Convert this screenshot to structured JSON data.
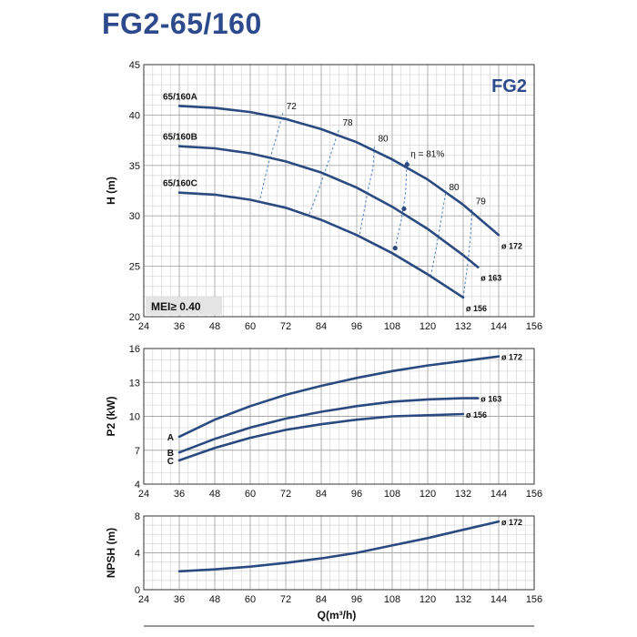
{
  "page": {
    "title": "FG2-65/160"
  },
  "chart_data": {
    "type": "line",
    "x_label": "Q(m³/h)",
    "x_ticks": [
      24,
      36,
      48,
      60,
      72,
      84,
      96,
      108,
      120,
      132,
      144,
      156
    ],
    "xlim": [
      24,
      156
    ],
    "charts": [
      {
        "id": "head",
        "ylabel": "H (m)",
        "ylim": [
          20,
          45
        ],
        "y_ticks": [
          20,
          25,
          30,
          35,
          40,
          45
        ],
        "grid": true,
        "badge": "FG2",
        "mei_label": "MEI≥ 0.40",
        "series": [
          {
            "name": "65/160A",
            "end_label": "ø 172",
            "x": [
              36,
              48,
              60,
              72,
              84,
              96,
              108,
              120,
              132,
              144
            ],
            "y": [
              40.9,
              40.7,
              40.3,
              39.6,
              38.6,
              37.3,
              35.6,
              33.6,
              31.1,
              28.1
            ]
          },
          {
            "name": "65/160B",
            "end_label": "ø 163",
            "x": [
              36,
              48,
              60,
              72,
              84,
              96,
              108,
              120,
              132,
              137
            ],
            "y": [
              36.9,
              36.7,
              36.2,
              35.4,
              34.3,
              32.8,
              30.9,
              28.7,
              26.1,
              24.9
            ]
          },
          {
            "name": "65/160C",
            "end_label": "ø 156",
            "x": [
              36,
              48,
              60,
              72,
              84,
              96,
              108,
              120,
              132
            ],
            "y": [
              32.3,
              32.1,
              31.6,
              30.8,
              29.6,
              28.1,
              26.3,
              24.2,
              21.9
            ]
          }
        ],
        "efficiency_labels": [
          "72",
          "78",
          "80",
          "η = 81%",
          "80",
          "79"
        ],
        "efficiency_curves": [
          {
            "label": "72",
            "x": [
              63,
              66,
              69,
              71
            ],
            "y": [
              31.3,
              35,
              38,
              40.2
            ]
          },
          {
            "label": "78",
            "x": [
              80,
              83,
              86,
              88,
              90
            ],
            "y": [
              30.2,
              32.5,
              35,
              36.8,
              38.6
            ]
          },
          {
            "label": "80",
            "x": [
              97,
              98.5,
              100,
              101.5,
              102
            ],
            "y": [
              28.2,
              30.5,
              32.8,
              34.8,
              37
            ]
          },
          {
            "label": "η = 81%",
            "x": [
              109,
              111,
              112.5,
              113
            ],
            "y": [
              26.8,
              29.5,
              32.2,
              35.5
            ]
          },
          {
            "label": "80",
            "x": [
              121,
              123,
              124.5,
              126
            ],
            "y": [
              24,
              27,
              29.5,
              32.2
            ]
          },
          {
            "label": "79",
            "x": [
              132,
              133.5,
              134.5,
              135
            ],
            "y": [
              21.9,
              25.2,
              28,
              30.8
            ]
          }
        ],
        "markers": [
          {
            "x": 113,
            "y": 35.1
          },
          {
            "x": 112,
            "y": 30.7
          },
          {
            "x": 109,
            "y": 26.8
          }
        ]
      },
      {
        "id": "power",
        "ylabel": "P2 (kW)",
        "ylim": [
          4,
          16
        ],
        "y_ticks": [
          4,
          7,
          10,
          13,
          16
        ],
        "grid": true,
        "series": [
          {
            "name": "A",
            "end_label": "ø 172",
            "x": [
              36,
              48,
              60,
              72,
              84,
              96,
              108,
              120,
              132,
              144
            ],
            "y": [
              8.2,
              9.7,
              10.9,
              11.9,
              12.7,
              13.4,
              14,
              14.5,
              14.9,
              15.3
            ]
          },
          {
            "name": "B",
            "end_label": "ø 163",
            "x": [
              36,
              48,
              60,
              72,
              84,
              96,
              108,
              120,
              132,
              137
            ],
            "y": [
              6.8,
              8,
              9,
              9.8,
              10.4,
              10.9,
              11.3,
              11.5,
              11.6,
              11.6
            ]
          },
          {
            "name": "C",
            "end_label": "ø 156",
            "x": [
              36,
              48,
              60,
              72,
              84,
              96,
              108,
              120,
              132
            ],
            "y": [
              6.1,
              7.2,
              8.1,
              8.8,
              9.3,
              9.7,
              10,
              10.1,
              10.2
            ]
          }
        ]
      },
      {
        "id": "npsh",
        "ylabel": "NPSH (m)",
        "ylim": [
          0,
          8
        ],
        "y_ticks": [
          0,
          4,
          8
        ],
        "grid": true,
        "series": [
          {
            "name": "",
            "end_label": "ø 172",
            "x": [
              36,
              48,
              60,
              72,
              84,
              96,
              108,
              120,
              132,
              144
            ],
            "y": [
              2,
              2.2,
              2.5,
              2.9,
              3.4,
              4,
              4.8,
              5.6,
              6.5,
              7.4
            ]
          }
        ]
      }
    ]
  }
}
